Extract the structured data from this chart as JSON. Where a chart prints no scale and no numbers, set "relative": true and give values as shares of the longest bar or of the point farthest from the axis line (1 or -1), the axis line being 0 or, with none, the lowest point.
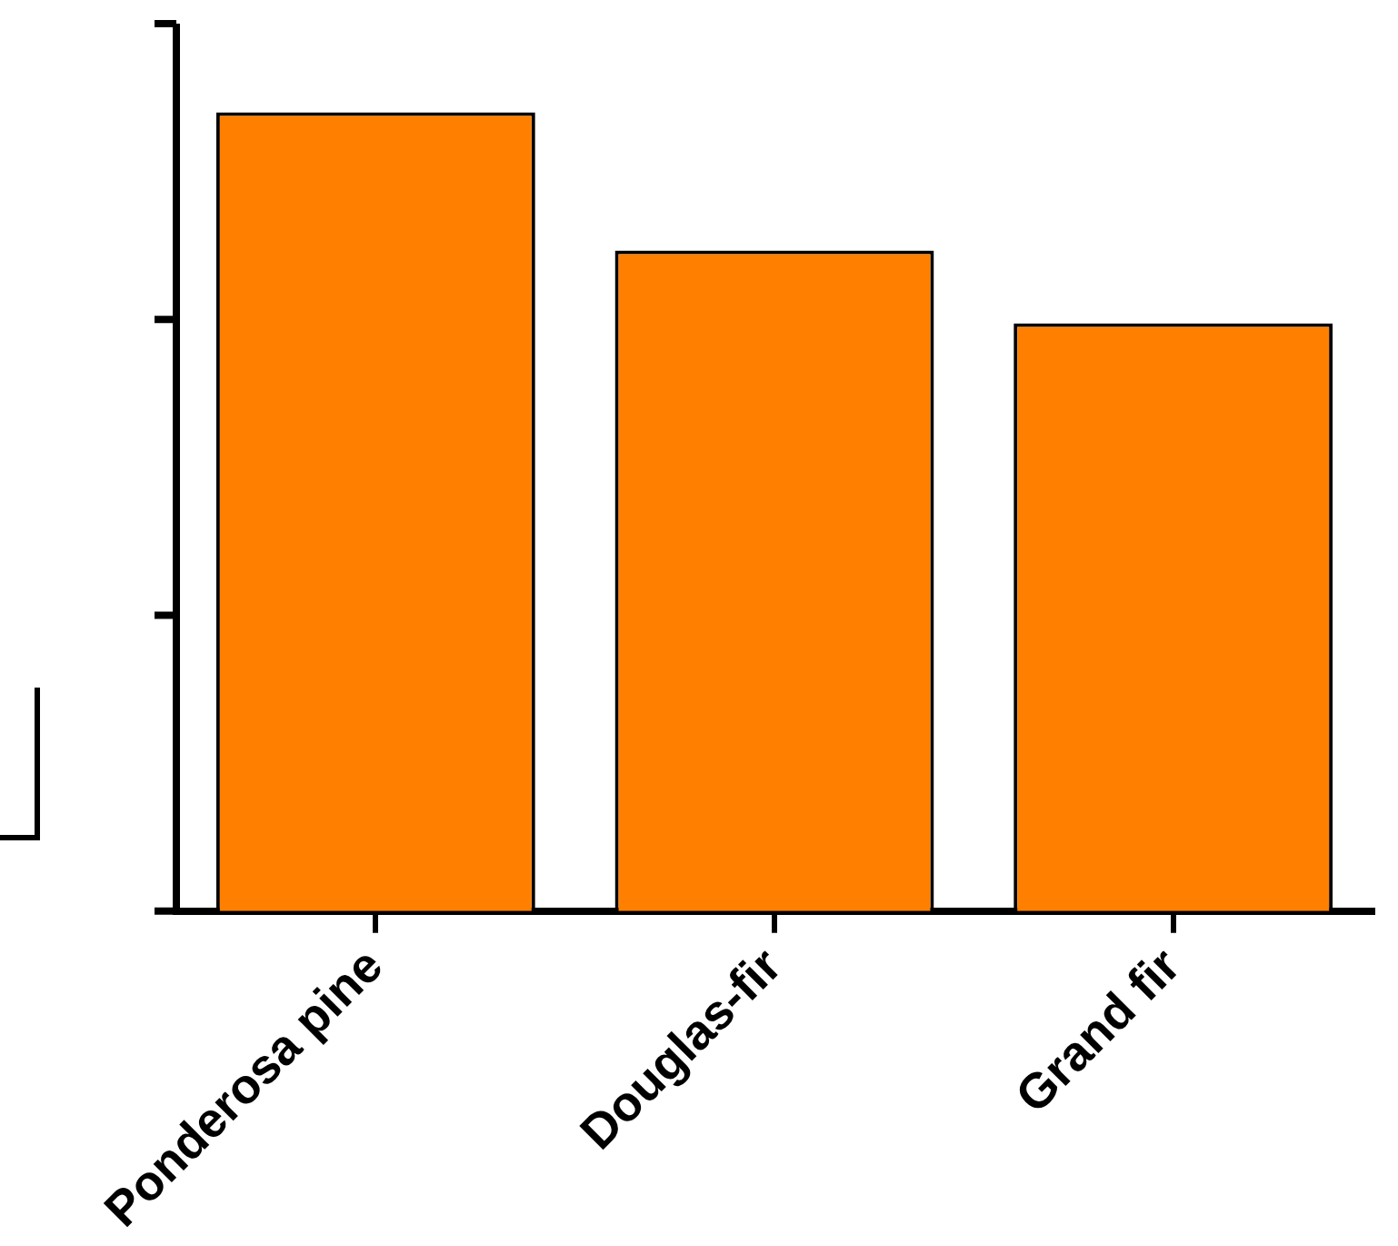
{
  "chart_data": {
    "type": "bar",
    "relative": true,
    "categories": [
      "Ponderosa pine",
      "Douglas-fir",
      "Grand fir"
    ],
    "values": [
      1,
      0.827,
      0.736
    ],
    "color": "#ff8000",
    "grid": false,
    "legend": false,
    "tick_labels": "x"
  }
}
